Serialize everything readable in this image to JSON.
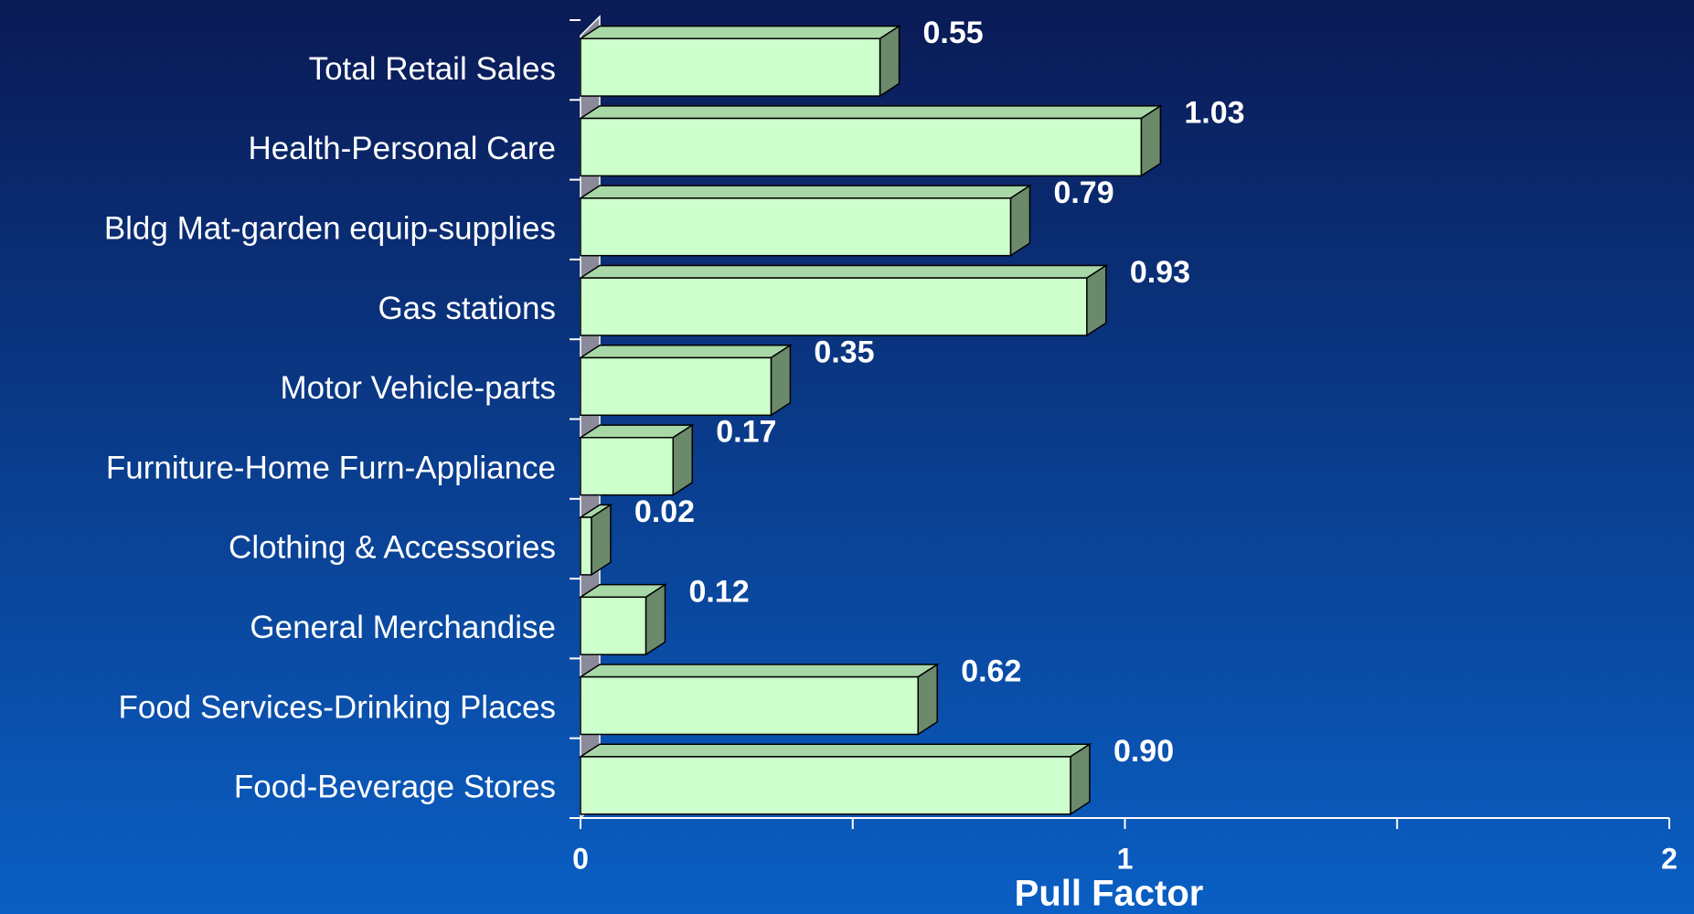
{
  "chart_data": {
    "type": "bar3d_horizontal",
    "categories": [
      "Total Retail Sales",
      "Health-Personal Care",
      "Bldg Mat-garden equip-supplies",
      "Gas stations",
      "Motor Vehicle-parts",
      "Furniture-Home Furn-Appliance",
      "Clothing & Accessories",
      "General Merchandise",
      "Food Services-Drinking Places",
      "Food-Beverage Stores"
    ],
    "values": [
      0.55,
      1.03,
      0.79,
      0.93,
      0.35,
      0.17,
      0.02,
      0.12,
      0.62,
      0.9
    ],
    "value_labels": [
      "0.55",
      "1.03",
      "0.79",
      "0.93",
      "0.35",
      "0.17",
      "0.02",
      "0.12",
      "0.62",
      "0.90"
    ],
    "color": "#ccffcc",
    "xlabel": "Pull Factor",
    "xlim": [
      0,
      2
    ],
    "xticks": [
      0,
      1,
      2
    ],
    "x_minor_ticks": [
      0.5,
      1.5
    ]
  }
}
